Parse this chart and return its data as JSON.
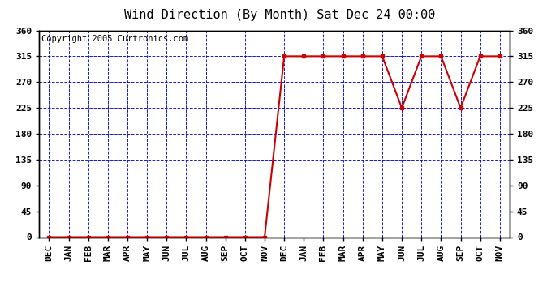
{
  "title": "Wind Direction (By Month) Sat Dec 24 00:00",
  "copyright": "Copyright 2005 Curtronics.com",
  "x_labels": [
    "DEC",
    "JAN",
    "FEB",
    "MAR",
    "APR",
    "MAY",
    "JUN",
    "JUL",
    "AUG",
    "SEP",
    "OCT",
    "NOV",
    "DEC",
    "JAN",
    "FEB",
    "MAR",
    "APR",
    "MAY",
    "JUN",
    "JUL",
    "AUG",
    "SEP",
    "OCT",
    "NOV"
  ],
  "y_values": [
    0,
    0,
    0,
    0,
    0,
    0,
    0,
    0,
    0,
    0,
    0,
    0,
    315,
    315,
    315,
    315,
    315,
    315,
    225,
    315,
    315,
    225,
    315,
    315
  ],
  "y_ticks": [
    0,
    45,
    90,
    135,
    180,
    225,
    270,
    315,
    360
  ],
  "ylim": [
    0,
    360
  ],
  "line_color": "#cc0000",
  "marker": "s",
  "marker_size": 3,
  "grid_color": "#0000bb",
  "bg_color": "#ffffff",
  "title_fontsize": 11,
  "copyright_fontsize": 7.5,
  "tick_label_color": "#000000",
  "tick_label_fontsize": 8,
  "tick_label_fontweight": "bold"
}
